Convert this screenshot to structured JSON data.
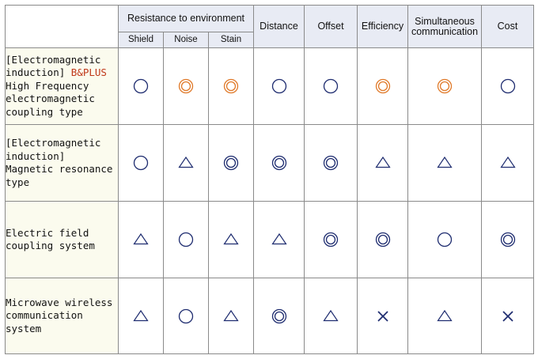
{
  "colors": {
    "header_bg": "#e8ebf4",
    "row_header_bg": "#fbfbee",
    "symbol_navy": "#1f2d70",
    "symbol_orange": "#e07a2a",
    "accent_text": "#c0391a"
  },
  "header": {
    "resistance_group": "Resistance to environment",
    "resistance_sub": [
      "Shield",
      "Noise",
      "Stain"
    ],
    "columns": [
      "Distance",
      "Offset",
      "Efficiency",
      "Simultaneous communication",
      "Cost"
    ]
  },
  "legend_symbols": {
    "double_circle": "◎",
    "circle": "○",
    "triangle": "△",
    "cross": "×"
  },
  "rows": [
    {
      "label_line1": "[Electromagnetic",
      "label_line2_prefix": "induction] ",
      "label_accent": "B&PLUS",
      "label_line3": "High Frequency",
      "label_line4": "electromagnetic",
      "label_line5": "coupling type",
      "values": [
        "circle",
        "double_circle",
        "double_circle",
        "circle",
        "circle",
        "double_circle",
        "double_circle",
        "circle"
      ],
      "highlight": [
        false,
        true,
        true,
        false,
        false,
        true,
        true,
        false
      ]
    },
    {
      "label_line1": "[Electromagnetic",
      "label_line2": "induction]",
      "label_line3": "Magnetic resonance",
      "label_line4": "type",
      "values": [
        "circle",
        "triangle",
        "double_circle",
        "double_circle",
        "double_circle",
        "triangle",
        "triangle",
        "triangle"
      ],
      "highlight": [
        false,
        false,
        false,
        false,
        false,
        false,
        false,
        false
      ]
    },
    {
      "label_line1": "Electric field",
      "label_line2": "coupling system",
      "values": [
        "triangle",
        "circle",
        "triangle",
        "triangle",
        "double_circle",
        "double_circle",
        "circle",
        "double_circle"
      ],
      "highlight": [
        false,
        false,
        false,
        false,
        false,
        false,
        false,
        false
      ]
    },
    {
      "label_line1": "Microwave wireless",
      "label_line2": "communication",
      "label_line3": "system",
      "values": [
        "triangle",
        "circle",
        "triangle",
        "double_circle",
        "triangle",
        "cross",
        "triangle",
        "cross"
      ],
      "highlight": [
        false,
        false,
        false,
        false,
        false,
        false,
        false,
        false
      ]
    }
  ]
}
